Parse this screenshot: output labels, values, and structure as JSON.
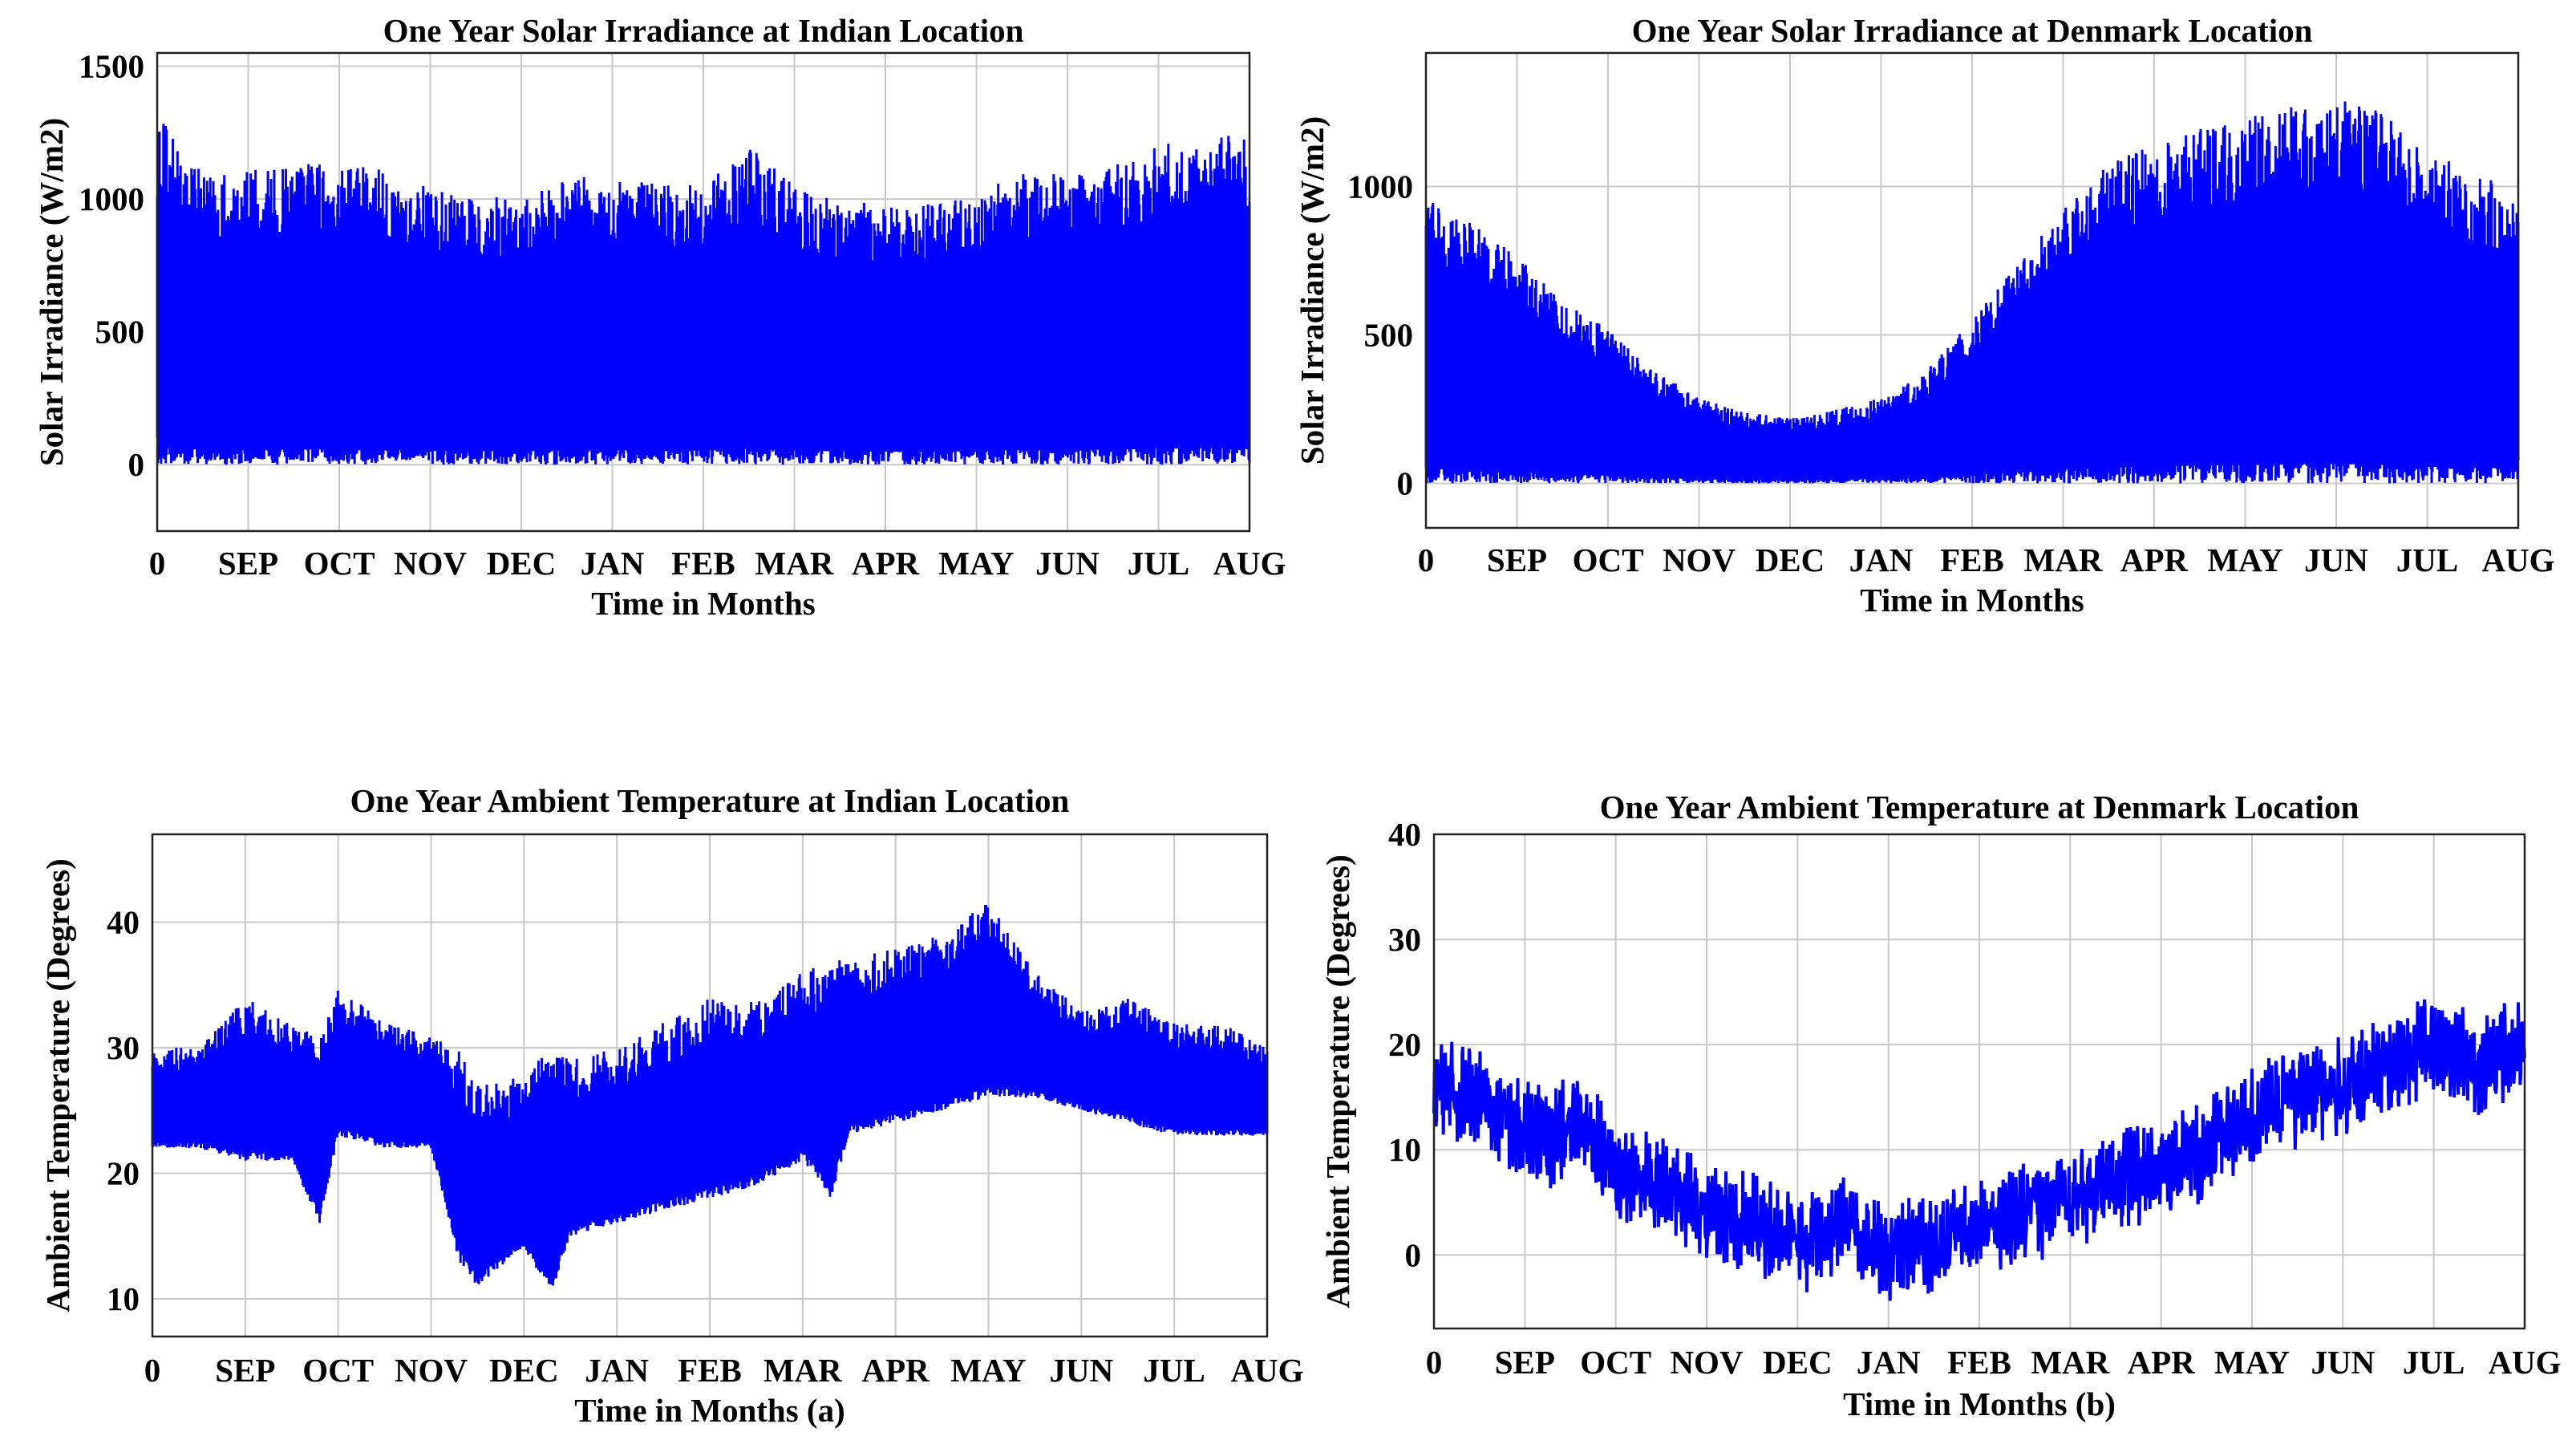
{
  "chart_data": [
    {
      "id": "a-irr",
      "type": "line",
      "title": "One Year Solar Irradiance at Indian Location",
      "xlabel": "Time in Months",
      "ylabel": "Solar Irradiance (W/m2)",
      "xlim": [
        0,
        12
      ],
      "ylim": [
        -250,
        1550
      ],
      "yticks": [
        0,
        500,
        1000,
        1500
      ],
      "xtick_labels": [
        "0",
        "SEP",
        "OCT",
        "NOV",
        "DEC",
        "JAN",
        "FEB",
        "MAR",
        "APR",
        "MAY",
        "JUN",
        "JUL",
        "AUG"
      ],
      "series_color": "#0000ff",
      "series": [
        {
          "name": "Irradiance",
          "kind": "band",
          "x": [
            0,
            0.3,
            0.6,
            1,
            1.5,
            2,
            2.5,
            3,
            3.5,
            4,
            4.5,
            5,
            5.5,
            6,
            6.5,
            7,
            7.5,
            8,
            8.5,
            9,
            9.5,
            10,
            10.5,
            11,
            11.5,
            12
          ],
          "low": [
            0,
            0,
            0,
            0,
            0,
            0,
            0,
            0,
            0,
            0,
            0,
            0,
            0,
            0,
            0,
            0,
            0,
            0,
            0,
            0,
            0,
            0,
            0,
            0,
            0,
            0
          ],
          "high": [
            1350,
            1170,
            1100,
            1110,
            1130,
            1150,
            1110,
            1040,
            1020,
            1000,
            1080,
            1090,
            1060,
            1050,
            1200,
            1050,
            1000,
            980,
            980,
            1020,
            1100,
            1100,
            1130,
            1200,
            1240,
            1250
          ]
        }
      ]
    },
    {
      "id": "b-irr",
      "type": "line",
      "title": "One Year Solar Irradiance at Denmark Location",
      "xlabel": "Time in Months",
      "ylabel": "Solar Irradiance (W/m2)",
      "xlim": [
        0,
        12
      ],
      "ylim": [
        -150,
        1450
      ],
      "yticks": [
        0,
        500,
        1000
      ],
      "xtick_labels": [
        "0",
        "SEP",
        "OCT",
        "NOV",
        "DEC",
        "JAN",
        "FEB",
        "MAR",
        "APR",
        "MAY",
        "JUN",
        "JUL",
        "AUG"
      ],
      "series_color": "#0000ff",
      "series": [
        {
          "name": "Irradiance",
          "kind": "band",
          "x": [
            0,
            0.5,
            1,
            1.5,
            2,
            2.5,
            3,
            3.5,
            4,
            4.5,
            5,
            5.5,
            6,
            6.5,
            7,
            7.5,
            8,
            8.5,
            9,
            9.5,
            10,
            10.5,
            11,
            11.5,
            12
          ],
          "low": [
            0,
            0,
            0,
            0,
            0,
            0,
            0,
            0,
            0,
            0,
            0,
            0,
            0,
            0,
            0,
            0,
            0,
            0,
            0,
            0,
            0,
            0,
            0,
            0,
            0
          ],
          "high": [
            960,
            880,
            770,
            620,
            520,
            380,
            290,
            240,
            220,
            250,
            290,
            380,
            550,
            750,
            920,
            1080,
            1150,
            1200,
            1230,
            1270,
            1300,
            1250,
            1120,
            1050,
            990
          ]
        }
      ]
    },
    {
      "id": "a-temp",
      "type": "line",
      "title": "One Year Ambient Temperature at Indian Location",
      "xlabel": "Time in Months (a)",
      "ylabel": "Ambient Temperature (Degrees)",
      "xlim": [
        0,
        12
      ],
      "ylim": [
        7,
        47
      ],
      "yticks": [
        10,
        20,
        30,
        40
      ],
      "xtick_labels": [
        "0",
        "SEP",
        "OCT",
        "NOV",
        "DEC",
        "JAN",
        "FEB",
        "MAR",
        "APR",
        "MAY",
        "JUN",
        "JUL",
        "AUG"
      ],
      "series_color": "#0000ff",
      "series": [
        {
          "name": "Temperature",
          "kind": "band",
          "x": [
            0,
            0.5,
            1,
            1.5,
            1.8,
            2,
            2.5,
            3,
            3.3,
            3.5,
            4,
            4.3,
            4.5,
            5,
            5.5,
            6,
            6.5,
            7,
            7.3,
            7.5,
            8,
            8.5,
            9,
            9.5,
            10,
            10.5,
            11,
            11.5,
            12
          ],
          "low": [
            22,
            22,
            21,
            21,
            16,
            23,
            22,
            22,
            13,
            11,
            14,
            10.5,
            15,
            16,
            17,
            18,
            19,
            21,
            18,
            23,
            24,
            25,
            26,
            26,
            25,
            24,
            23,
            23,
            23
          ],
          "high": [
            30,
            30,
            34,
            32,
            31,
            35,
            32,
            31,
            30,
            27,
            28,
            30,
            29,
            30,
            32,
            34,
            34,
            36,
            37,
            37,
            38,
            39,
            42,
            36,
            33,
            34,
            32,
            32,
            30
          ]
        }
      ]
    },
    {
      "id": "b-temp",
      "type": "line",
      "title": "One Year Ambient Temperature at Denmark Location",
      "xlabel": "Time in Months (b)",
      "ylabel": "Ambient Temperature (Degrees)",
      "xlim": [
        0,
        12
      ],
      "ylim": [
        -7,
        40
      ],
      "yticks": [
        0,
        10,
        20,
        30,
        40
      ],
      "xtick_labels": [
        "0",
        "SEP",
        "OCT",
        "NOV",
        "DEC",
        "JAN",
        "FEB",
        "MAR",
        "APR",
        "MAY",
        "JUN",
        "JUL",
        "AUG"
      ],
      "series_color": "#0000ff",
      "series": [
        {
          "name": "Temperature",
          "kind": "noisy_line",
          "x": [
            0,
            0.5,
            1,
            1.3,
            1.6,
            2,
            2.5,
            3,
            3.5,
            4,
            4.5,
            5,
            5.5,
            6,
            6.5,
            7,
            7.5,
            8,
            8.5,
            9,
            9.5,
            10,
            10.5,
            11,
            11.5,
            12
          ],
          "y": [
            16,
            15,
            12,
            11,
            13,
            8,
            7,
            4,
            3,
            1,
            3,
            0,
            1,
            3,
            4,
            5,
            7,
            8,
            10,
            13,
            15,
            16,
            18,
            20,
            18,
            20
          ]
        }
      ]
    }
  ]
}
